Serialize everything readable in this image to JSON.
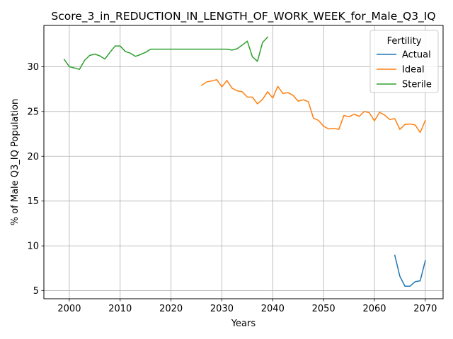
{
  "chart_data": {
    "type": "line",
    "title": "Score_3_in_REDUCTION_IN_LENGTH_OF_WORK_WEEK_for_Male_Q3_IQ",
    "xlabel": "Years",
    "ylabel": "% of Male Q3_IQ Population",
    "xlim": [
      1995,
      2073.5
    ],
    "ylim": [
      4.1,
      34.6
    ],
    "xticks": [
      2000,
      2010,
      2020,
      2030,
      2040,
      2050,
      2060,
      2070
    ],
    "yticks": [
      5,
      10,
      15,
      20,
      25,
      30
    ],
    "grid": true,
    "legend": {
      "title": "Fertility",
      "placement": "top-right"
    },
    "series": [
      {
        "name": "Actual",
        "color": "#1f77b4",
        "x": [
          2064,
          2065,
          2066,
          2067,
          2068,
          2069,
          2070
        ],
        "y": [
          8.95,
          6.6,
          5.5,
          5.5,
          6.0,
          6.1,
          8.35
        ]
      },
      {
        "name": "Ideal",
        "color": "#ff7f0e",
        "x": [
          2026,
          2027,
          2028,
          2029,
          2030,
          2031,
          2032,
          2033,
          2034,
          2035,
          2036,
          2037,
          2038,
          2039,
          2040,
          2041,
          2042,
          2043,
          2044,
          2045,
          2046,
          2047,
          2048,
          2049,
          2050,
          2051,
          2052,
          2053,
          2054,
          2055,
          2056,
          2057,
          2058,
          2059,
          2060,
          2061,
          2062,
          2063,
          2064,
          2065,
          2066,
          2067,
          2068,
          2069,
          2070
        ],
        "y": [
          27.9,
          28.3,
          28.4,
          28.55,
          27.75,
          28.45,
          27.6,
          27.3,
          27.2,
          26.6,
          26.6,
          25.85,
          26.35,
          27.2,
          26.5,
          27.8,
          27.0,
          27.1,
          26.8,
          26.15,
          26.3,
          26.1,
          24.25,
          24.0,
          23.35,
          23.05,
          23.1,
          23.0,
          24.55,
          24.4,
          24.7,
          24.45,
          25.0,
          24.85,
          23.95,
          24.9,
          24.6,
          24.1,
          24.2,
          23.0,
          23.55,
          23.6,
          23.5,
          22.65,
          24.0
        ]
      },
      {
        "name": "Sterile",
        "color": "#2ca02c",
        "x": [
          1999,
          2000,
          2001,
          2002,
          2003,
          2004,
          2005,
          2006,
          2007,
          2008,
          2009,
          2010,
          2011,
          2012,
          2013,
          2014,
          2015,
          2016,
          2017,
          2018,
          2019,
          2020,
          2021,
          2022,
          2023,
          2024,
          2025,
          2026,
          2027,
          2028,
          2029,
          2030,
          2031,
          2032,
          2033,
          2034,
          2035,
          2036,
          2037,
          2038,
          2039
        ],
        "y": [
          30.8,
          30.0,
          29.85,
          29.7,
          30.7,
          31.25,
          31.4,
          31.2,
          30.85,
          31.6,
          32.3,
          32.3,
          31.7,
          31.5,
          31.15,
          31.35,
          31.6,
          31.95,
          31.95,
          31.95,
          31.95,
          31.95,
          31.95,
          31.95,
          31.95,
          31.95,
          31.95,
          31.95,
          31.95,
          31.95,
          31.95,
          31.95,
          31.95,
          31.85,
          32.0,
          32.4,
          32.85,
          31.1,
          30.6,
          32.7,
          33.3
        ]
      }
    ]
  }
}
